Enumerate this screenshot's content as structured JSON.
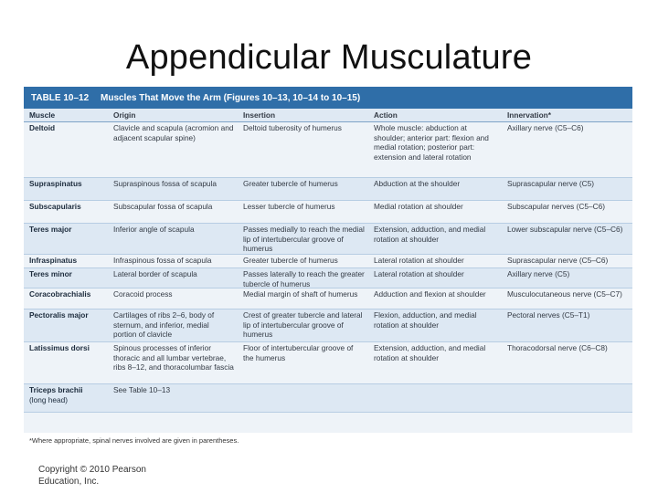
{
  "slide": {
    "title": "Appendicular Musculature",
    "copyright_line1": "Copyright © 2010 Pearson",
    "copyright_line2": "Education, Inc."
  },
  "table": {
    "label": "TABLE 10–12",
    "caption": "Muscles That Move the Arm (Figures 10–13, 10–14 to 10–15)",
    "headers": [
      "Muscle",
      "Origin",
      "Insertion",
      "Action",
      "Innervation*"
    ],
    "rows": [
      {
        "muscle": "Deltoid",
        "muscle_sub": "",
        "origin": "Clavicle and scapula (acromion and adjacent scapular spine)",
        "insertion": "Deltoid tuberosity of humerus",
        "action": "Whole muscle: abduction at shoulder; anterior part: flexion and medial rotation; posterior part: extension and lateral rotation",
        "innervation": "Axillary nerve (C5–C6)"
      },
      {
        "muscle": "Supraspinatus",
        "muscle_sub": "",
        "origin": "Supraspinous fossa of scapula",
        "insertion": "Greater tubercle of humerus",
        "action": "Abduction at the shoulder",
        "innervation": "Suprascapular nerve (C5)"
      },
      {
        "muscle": "Subscapularis",
        "muscle_sub": "",
        "origin": "Subscapular fossa of scapula",
        "insertion": "Lesser tubercle of humerus",
        "action": "Medial rotation at shoulder",
        "innervation": "Subscapular nerves (C5–C6)"
      },
      {
        "muscle": "Teres major",
        "muscle_sub": "",
        "origin": "Inferior angle of scapula",
        "insertion": "Passes medially to reach the medial lip of intertubercular groove of humerus",
        "action": "Extension, adduction, and medial rotation at shoulder",
        "innervation": "Lower subscapular nerve (C5–C6)"
      },
      {
        "muscle": "Infraspinatus",
        "muscle_sub": "",
        "origin": "Infraspinous fossa of scapula",
        "insertion": "Greater tubercle of humerus",
        "action": "Lateral rotation at shoulder",
        "innervation": "Suprascapular nerve (C5–C6)"
      },
      {
        "muscle": "Teres minor",
        "muscle_sub": "",
        "origin": "Lateral border of scapula",
        "insertion": "Passes laterally to reach the greater tubercle of humerus",
        "action": "Lateral rotation at shoulder",
        "innervation": "Axillary nerve (C5)"
      },
      {
        "muscle": "Coracobrachialis",
        "muscle_sub": "",
        "origin": "Coracoid process",
        "insertion": "Medial margin of shaft of humerus",
        "action": "Adduction and flexion at shoulder",
        "innervation": "Musculocutaneous nerve (C5–C7)"
      },
      {
        "muscle": "Pectoralis major",
        "muscle_sub": "",
        "origin": "Cartilages of ribs 2–6, body of sternum, and inferior, medial portion of clavicle",
        "insertion": "Crest of greater tubercle and lateral lip of intertubercular groove of humerus",
        "action": "Flexion, adduction, and medial rotation at shoulder",
        "innervation": "Pectoral nerves (C5–T1)"
      },
      {
        "muscle": "Latissimus dorsi",
        "muscle_sub": "",
        "origin": "Spinous processes of inferior thoracic and all lumbar vertebrae, ribs 8–12, and thoracolumbar fascia",
        "insertion": "Floor of intertubercular groove of the humerus",
        "action": "Extension, adduction, and medial rotation at shoulder",
        "innervation": "Thoracodorsal nerve (C6–C8)"
      },
      {
        "muscle": "Triceps brachii",
        "muscle_sub": "(long head)",
        "origin": "See Table 10–13",
        "insertion": "",
        "action": "",
        "innervation": ""
      }
    ],
    "footnote": "*Where appropriate, spinal nerves involved are given in parentheses."
  }
}
